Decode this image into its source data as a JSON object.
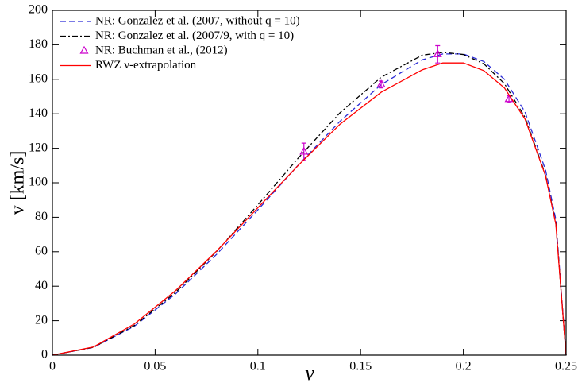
{
  "chart_data": {
    "type": "line",
    "x_label": "ν",
    "y_label": "v [km/s]",
    "xlim": [
      0,
      0.25
    ],
    "ylim": [
      0,
      200
    ],
    "xticks": [
      0,
      0.05,
      0.1,
      0.15,
      0.2,
      0.25
    ],
    "yticks": [
      0,
      20,
      40,
      60,
      80,
      100,
      120,
      140,
      160,
      180,
      200
    ],
    "legend": "upper left",
    "series": [
      {
        "name": "NR: Gonzalez et al. (2007, without q = 10)",
        "color": "#2b2bd6",
        "style": "dashed",
        "x": [
          0,
          0.02,
          0.04,
          0.06,
          0.08,
          0.1,
          0.12,
          0.14,
          0.16,
          0.18,
          0.19,
          0.2,
          0.21,
          0.22,
          0.23,
          0.24,
          0.245,
          0.25
        ],
        "values": [
          0,
          4.5,
          16.9,
          35.6,
          58.6,
          84.3,
          110.7,
          135.7,
          156.9,
          171.3,
          174.7,
          174.7,
          170.3,
          160.0,
          141.1,
          107.4,
          78.7,
          0
        ]
      },
      {
        "name": "NR: Gonzalez et al. (2007/9, with q = 10)",
        "color": "#000000",
        "style": "dashdot",
        "x": [
          0,
          0.02,
          0.04,
          0.06,
          0.08,
          0.1,
          0.12,
          0.14,
          0.16,
          0.18,
          0.19,
          0.2,
          0.21,
          0.22,
          0.23,
          0.24,
          0.245,
          0.25
        ],
        "values": [
          0,
          4.6,
          17.3,
          36.5,
          60.3,
          87.2,
          114.8,
          140.6,
          161.2,
          174.0,
          175.6,
          174.4,
          169.0,
          157.5,
          138.0,
          104.5,
          76.5,
          0
        ]
      },
      {
        "name": "NR: Buchman et al., (2012)",
        "color": "#cc00cc",
        "style": "markers",
        "x": [
          0.1224,
          0.16,
          0.1875,
          0.2222
        ],
        "values": [
          118,
          157,
          174.5,
          148.5
        ],
        "errors": [
          5,
          2,
          5,
          2
        ]
      },
      {
        "name": "RWZ ν-extrapolation",
        "color": "#ff0000",
        "style": "solid",
        "x": [
          0,
          0.02,
          0.04,
          0.06,
          0.08,
          0.1,
          0.12,
          0.14,
          0.16,
          0.18,
          0.19,
          0.2,
          0.21,
          0.22,
          0.23,
          0.24,
          0.245,
          0.25
        ],
        "values": [
          0,
          4.8,
          18.2,
          37.5,
          60.5,
          85.5,
          110.5,
          134.0,
          152.5,
          165.5,
          169.5,
          169.5,
          165.0,
          155.0,
          137.0,
          104.0,
          76.0,
          0
        ]
      }
    ]
  }
}
